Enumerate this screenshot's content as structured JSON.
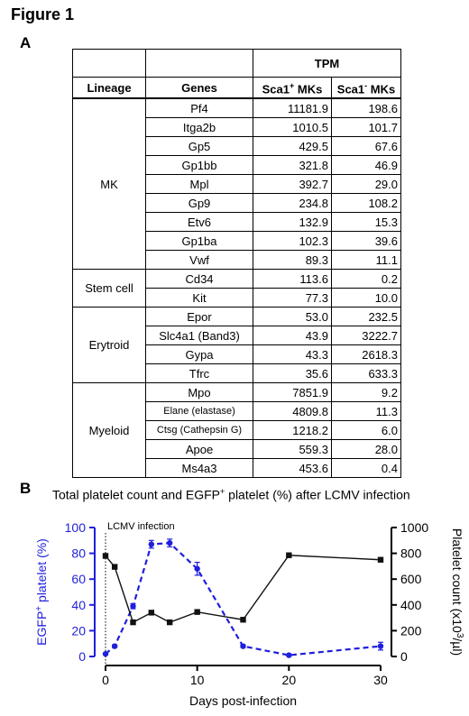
{
  "figure_title": "Figure 1",
  "panel_a_letter": "A",
  "panel_b_letter": "B",
  "table": {
    "top_header": "TPM",
    "col_lineage": "Lineage",
    "col_genes": "Genes",
    "col_sca1_pos": "Sca1+ MKs",
    "col_sca1_neg": "Sca1- MKs",
    "groups": [
      {
        "lineage": "MK",
        "rows": [
          {
            "gene": "Pf4",
            "pos": "11181.9",
            "neg": "198.6"
          },
          {
            "gene": "Itga2b",
            "pos": "1010.5",
            "neg": "101.7"
          },
          {
            "gene": "Gp5",
            "pos": "429.5",
            "neg": "67.6"
          },
          {
            "gene": "Gp1bb",
            "pos": "321.8",
            "neg": "46.9"
          },
          {
            "gene": "Mpl",
            "pos": "392.7",
            "neg": "29.0"
          },
          {
            "gene": "Gp9",
            "pos": "234.8",
            "neg": "108.2"
          },
          {
            "gene": "Etv6",
            "pos": "132.9",
            "neg": "15.3"
          },
          {
            "gene": "Gp1ba",
            "pos": "102.3",
            "neg": "39.6"
          },
          {
            "gene": "Vwf",
            "pos": "89.3",
            "neg": "11.1"
          }
        ]
      },
      {
        "lineage": "Stem cell",
        "rows": [
          {
            "gene": "Cd34",
            "pos": "113.6",
            "neg": "0.2"
          },
          {
            "gene": "Kit",
            "pos": "77.3",
            "neg": "10.0"
          }
        ]
      },
      {
        "lineage": "Erytroid",
        "rows": [
          {
            "gene": "Epor",
            "pos": "53.0",
            "neg": "232.5"
          },
          {
            "gene": "Slc4a1 (Band3)",
            "pos": "43.9",
            "neg": "3222.7"
          },
          {
            "gene": "Gypa",
            "pos": "43.3",
            "neg": "2618.3"
          },
          {
            "gene": "Tfrc",
            "pos": "35.6",
            "neg": "633.3"
          }
        ]
      },
      {
        "lineage": "Myeloid",
        "rows": [
          {
            "gene": "Mpo",
            "pos": "7851.9",
            "neg": "9.2"
          },
          {
            "gene": "Elane (elastase)",
            "pos": "4809.8",
            "neg": "11.3",
            "small": true
          },
          {
            "gene": "Ctsg (Cathepsin G)",
            "pos": "1218.2",
            "neg": "6.0",
            "small": true
          },
          {
            "gene": "Apoe",
            "pos": "559.3",
            "neg": "28.0"
          },
          {
            "gene": "Ms4a3",
            "pos": "453.6",
            "neg": "0.4"
          }
        ]
      }
    ]
  },
  "chart_data": {
    "type": "line",
    "title": "Total platelet count and EGFP+ platelet (%) after LCMV infection",
    "xlabel": "Days post-infection",
    "ylabel_left": "EGFP+ platelet (%)",
    "ylabel_right": "Platelet count (x10^3/µl)",
    "xlim": [
      0,
      30
    ],
    "xticks": [
      0,
      10,
      20,
      30
    ],
    "ylim_left": [
      0,
      100
    ],
    "yticks_left": [
      0,
      20,
      40,
      60,
      80,
      100
    ],
    "ylim_right": [
      0,
      1000
    ],
    "yticks_right": [
      0,
      200,
      400,
      600,
      800,
      1000
    ],
    "annotation": {
      "text": "LCMV infection",
      "x": 0
    },
    "series": [
      {
        "name": "EGFP+ platelet (%)",
        "axis": "left",
        "color": "#1f1fdd",
        "dashed": true,
        "marker": "circle",
        "x": [
          0,
          1,
          3,
          5,
          7,
          10,
          15,
          20,
          30
        ],
        "y": [
          2,
          8,
          39,
          87,
          88,
          68,
          8,
          1,
          8
        ],
        "err": [
          0,
          1,
          2,
          3,
          3,
          5,
          1,
          0,
          3
        ]
      },
      {
        "name": "Platelet count",
        "axis": "right",
        "color": "#111111",
        "dashed": false,
        "marker": "square",
        "x": [
          0,
          1,
          3,
          5,
          7,
          10,
          15,
          20,
          30
        ],
        "y": [
          780,
          695,
          265,
          340,
          265,
          345,
          285,
          785,
          750
        ],
        "err": [
          0,
          0,
          0,
          0,
          0,
          0,
          0,
          0,
          0
        ]
      }
    ]
  }
}
